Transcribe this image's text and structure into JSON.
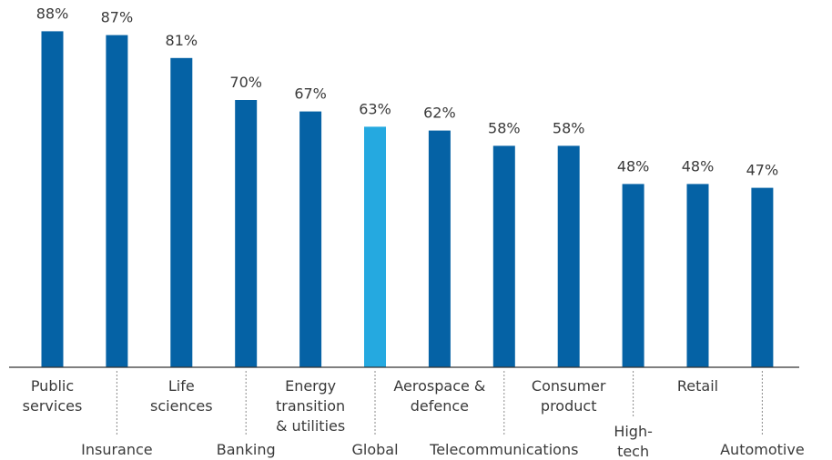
{
  "chart_data": {
    "type": "bar",
    "categories": [
      [
        "Public",
        "services"
      ],
      [
        "Insurance"
      ],
      [
        "Life",
        "sciences"
      ],
      [
        "Banking"
      ],
      [
        "Energy",
        "transition",
        "& utilities"
      ],
      [
        "Global"
      ],
      [
        "Aerospace &",
        "defence"
      ],
      [
        "Telecommunications"
      ],
      [
        "Consumer",
        "product"
      ],
      [
        "High-",
        "tech"
      ],
      [
        "Retail"
      ],
      [
        "Automotive"
      ]
    ],
    "values": [
      88,
      87,
      81,
      70,
      67,
      63,
      62,
      58,
      58,
      48,
      48,
      47
    ],
    "value_labels": [
      "88%",
      "87%",
      "81%",
      "70%",
      "67%",
      "63%",
      "62%",
      "58%",
      "58%",
      "48%",
      "48%",
      "47%"
    ],
    "highlight_index": 5,
    "colors": {
      "bar": "#0562a5",
      "highlight": "#25a9e0",
      "axis": "#333333",
      "divider": "#8a8a8a"
    },
    "ylim": [
      0,
      100
    ],
    "grid": false
  }
}
